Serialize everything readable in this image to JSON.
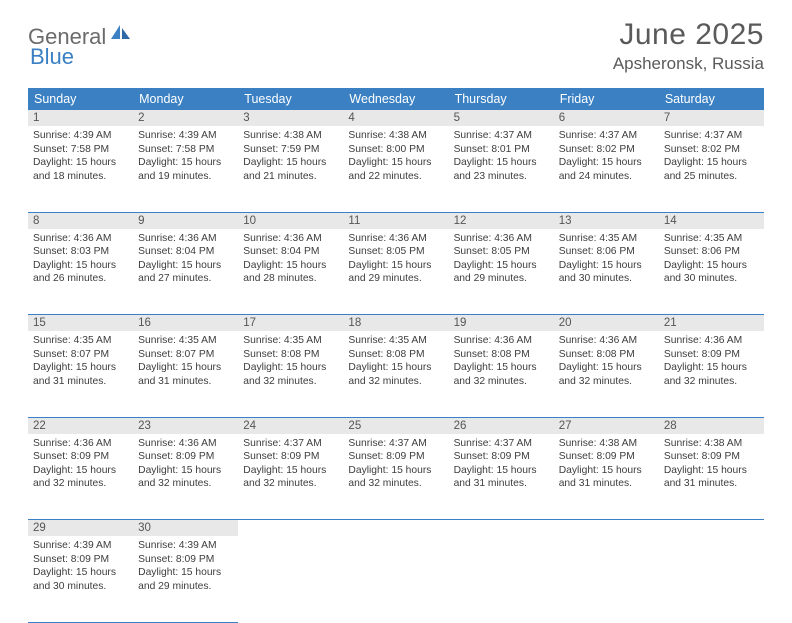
{
  "logo": {
    "part1": "General",
    "part2": "Blue"
  },
  "title": "June 2025",
  "subtitle": "Apsheronsk, Russia",
  "colors": {
    "header_bg": "#3a80c3",
    "daynum_bg": "#e8e8e8",
    "rule": "#3a80c3",
    "text": "#333333",
    "logo_gray": "#6b6b6b",
    "logo_blue": "#3a80c3"
  },
  "weekdays": [
    "Sunday",
    "Monday",
    "Tuesday",
    "Wednesday",
    "Thursday",
    "Friday",
    "Saturday"
  ],
  "weeks": [
    [
      {
        "n": "1",
        "sr": "4:39 AM",
        "ss": "7:58 PM",
        "dl": "15 hours and 18 minutes."
      },
      {
        "n": "2",
        "sr": "4:39 AM",
        "ss": "7:58 PM",
        "dl": "15 hours and 19 minutes."
      },
      {
        "n": "3",
        "sr": "4:38 AM",
        "ss": "7:59 PM",
        "dl": "15 hours and 21 minutes."
      },
      {
        "n": "4",
        "sr": "4:38 AM",
        "ss": "8:00 PM",
        "dl": "15 hours and 22 minutes."
      },
      {
        "n": "5",
        "sr": "4:37 AM",
        "ss": "8:01 PM",
        "dl": "15 hours and 23 minutes."
      },
      {
        "n": "6",
        "sr": "4:37 AM",
        "ss": "8:02 PM",
        "dl": "15 hours and 24 minutes."
      },
      {
        "n": "7",
        "sr": "4:37 AM",
        "ss": "8:02 PM",
        "dl": "15 hours and 25 minutes."
      }
    ],
    [
      {
        "n": "8",
        "sr": "4:36 AM",
        "ss": "8:03 PM",
        "dl": "15 hours and 26 minutes."
      },
      {
        "n": "9",
        "sr": "4:36 AM",
        "ss": "8:04 PM",
        "dl": "15 hours and 27 minutes."
      },
      {
        "n": "10",
        "sr": "4:36 AM",
        "ss": "8:04 PM",
        "dl": "15 hours and 28 minutes."
      },
      {
        "n": "11",
        "sr": "4:36 AM",
        "ss": "8:05 PM",
        "dl": "15 hours and 29 minutes."
      },
      {
        "n": "12",
        "sr": "4:36 AM",
        "ss": "8:05 PM",
        "dl": "15 hours and 29 minutes."
      },
      {
        "n": "13",
        "sr": "4:35 AM",
        "ss": "8:06 PM",
        "dl": "15 hours and 30 minutes."
      },
      {
        "n": "14",
        "sr": "4:35 AM",
        "ss": "8:06 PM",
        "dl": "15 hours and 30 minutes."
      }
    ],
    [
      {
        "n": "15",
        "sr": "4:35 AM",
        "ss": "8:07 PM",
        "dl": "15 hours and 31 minutes."
      },
      {
        "n": "16",
        "sr": "4:35 AM",
        "ss": "8:07 PM",
        "dl": "15 hours and 31 minutes."
      },
      {
        "n": "17",
        "sr": "4:35 AM",
        "ss": "8:08 PM",
        "dl": "15 hours and 32 minutes."
      },
      {
        "n": "18",
        "sr": "4:35 AM",
        "ss": "8:08 PM",
        "dl": "15 hours and 32 minutes."
      },
      {
        "n": "19",
        "sr": "4:36 AM",
        "ss": "8:08 PM",
        "dl": "15 hours and 32 minutes."
      },
      {
        "n": "20",
        "sr": "4:36 AM",
        "ss": "8:08 PM",
        "dl": "15 hours and 32 minutes."
      },
      {
        "n": "21",
        "sr": "4:36 AM",
        "ss": "8:09 PM",
        "dl": "15 hours and 32 minutes."
      }
    ],
    [
      {
        "n": "22",
        "sr": "4:36 AM",
        "ss": "8:09 PM",
        "dl": "15 hours and 32 minutes."
      },
      {
        "n": "23",
        "sr": "4:36 AM",
        "ss": "8:09 PM",
        "dl": "15 hours and 32 minutes."
      },
      {
        "n": "24",
        "sr": "4:37 AM",
        "ss": "8:09 PM",
        "dl": "15 hours and 32 minutes."
      },
      {
        "n": "25",
        "sr": "4:37 AM",
        "ss": "8:09 PM",
        "dl": "15 hours and 32 minutes."
      },
      {
        "n": "26",
        "sr": "4:37 AM",
        "ss": "8:09 PM",
        "dl": "15 hours and 31 minutes."
      },
      {
        "n": "27",
        "sr": "4:38 AM",
        "ss": "8:09 PM",
        "dl": "15 hours and 31 minutes."
      },
      {
        "n": "28",
        "sr": "4:38 AM",
        "ss": "8:09 PM",
        "dl": "15 hours and 31 minutes."
      }
    ],
    [
      {
        "n": "29",
        "sr": "4:39 AM",
        "ss": "8:09 PM",
        "dl": "15 hours and 30 minutes."
      },
      {
        "n": "30",
        "sr": "4:39 AM",
        "ss": "8:09 PM",
        "dl": "15 hours and 29 minutes."
      },
      null,
      null,
      null,
      null,
      null
    ]
  ],
  "labels": {
    "sunrise": "Sunrise:",
    "sunset": "Sunset:",
    "daylight": "Daylight:"
  }
}
